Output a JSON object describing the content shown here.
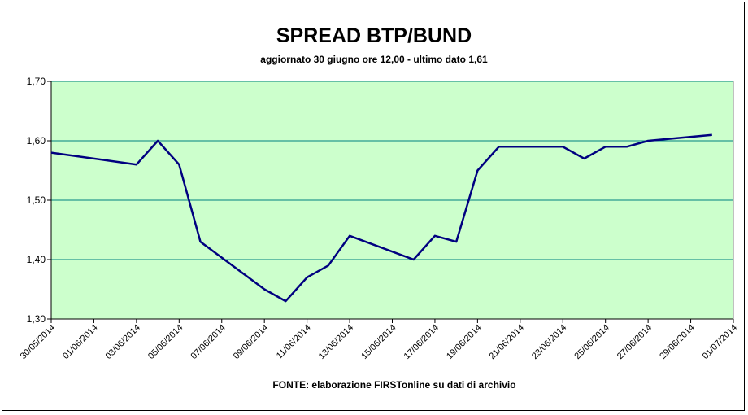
{
  "chart_data": {
    "type": "line",
    "title": "SPREAD BTP/BUND",
    "subtitle": "aggiornato 30 giugno ore 12,00 - ultimo dato 1,61",
    "source": "FONTE:  elaborazione FIRSTonline su dati di archivio",
    "ylim": [
      1.3,
      1.7
    ],
    "y_ticks": [
      "1,30",
      "1,40",
      "1,50",
      "1,60",
      "1,70"
    ],
    "y_tick_values": [
      1.3,
      1.4,
      1.5,
      1.6,
      1.7
    ],
    "x_ticks": [
      "30/05/2014",
      "01/06/2014",
      "03/06/2014",
      "05/06/2014",
      "07/06/2014",
      "09/06/2014",
      "11/06/2014",
      "13/06/2014",
      "15/06/2014",
      "17/06/2014",
      "19/06/2014",
      "21/06/2014",
      "23/06/2014",
      "25/06/2014",
      "27/06/2014",
      "29/06/2014",
      "01/07/2014"
    ],
    "grid": true,
    "colors": {
      "plot_bg": "#ccffcc",
      "line": "#000080",
      "grid": "#008080"
    },
    "series": [
      {
        "x": [
          "30/05/2014",
          "03/06/2014",
          "04/06/2014",
          "05/06/2014",
          "06/06/2014",
          "09/06/2014",
          "10/06/2014",
          "11/06/2014",
          "12/06/2014",
          "13/06/2014",
          "16/06/2014",
          "17/06/2014",
          "18/06/2014",
          "19/06/2014",
          "20/06/2014",
          "23/06/2014",
          "24/06/2014",
          "25/06/2014",
          "26/06/2014",
          "27/06/2014",
          "30/06/2014"
        ],
        "values": [
          1.58,
          1.56,
          1.6,
          1.56,
          1.43,
          1.35,
          1.33,
          1.37,
          1.39,
          1.44,
          1.4,
          1.44,
          1.43,
          1.55,
          1.59,
          1.59,
          1.57,
          1.59,
          1.59,
          1.6,
          1.61
        ]
      }
    ]
  }
}
